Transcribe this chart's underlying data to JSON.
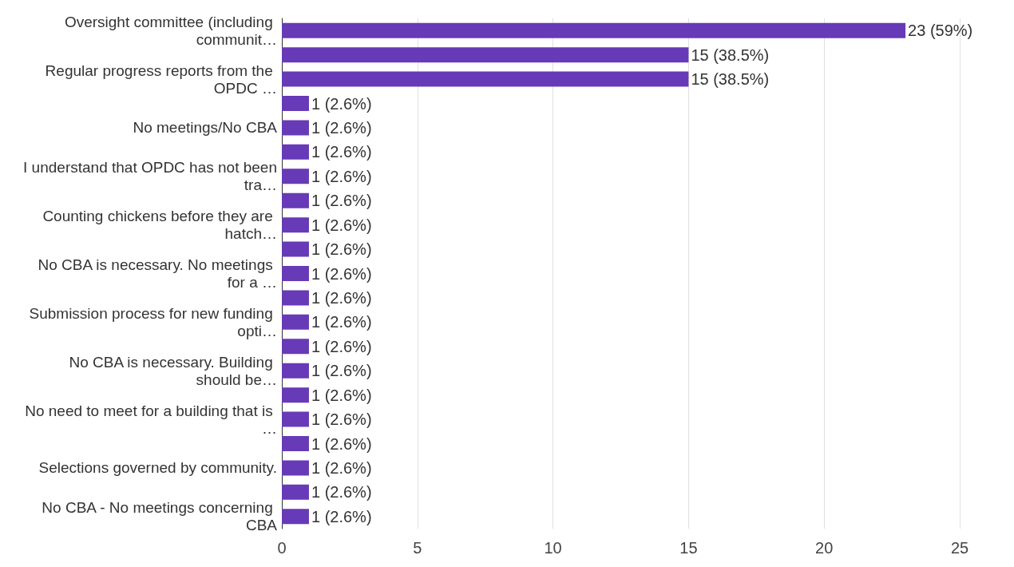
{
  "chart_data": {
    "type": "bar",
    "orientation": "horizontal",
    "categories": [
      "Oversight committee (including communit…",
      null,
      "Regular progress reports from the OPDC …",
      null,
      "No meetings/No CBA",
      null,
      "I understand that OPDC has not been tra…",
      null,
      "Counting chickens before they are hatch…",
      null,
      "No CBA is necessary. No meetings for a …",
      null,
      "Submission process for new funding opti…",
      null,
      "No CBA is necessary. Building should be…",
      null,
      "No need to meet for a building that is …",
      null,
      "Selections governed by community.",
      null,
      "No CBA - No meetings concerning CBA"
    ],
    "values": [
      23,
      15,
      15,
      1,
      1,
      1,
      1,
      1,
      1,
      1,
      1,
      1,
      1,
      1,
      1,
      1,
      1,
      1,
      1,
      1,
      1
    ],
    "value_labels": [
      "23 (59%)",
      "15 (38.5%)",
      "15 (38.5%)",
      "1 (2.6%)",
      "1 (2.6%)",
      "1 (2.6%)",
      "1 (2.6%)",
      "1 (2.6%)",
      "1 (2.6%)",
      "1 (2.6%)",
      "1 (2.6%)",
      "1 (2.6%)",
      "1 (2.6%)",
      "1 (2.6%)",
      "1 (2.6%)",
      "1 (2.6%)",
      "1 (2.6%)",
      "1 (2.6%)",
      "1 (2.6%)",
      "1 (2.6%)",
      "1 (2.6%)"
    ],
    "color": "#673ab7",
    "xlim": [
      0,
      25
    ],
    "xticks": [
      0,
      5,
      10,
      15,
      20,
      25
    ],
    "grid": "x"
  }
}
